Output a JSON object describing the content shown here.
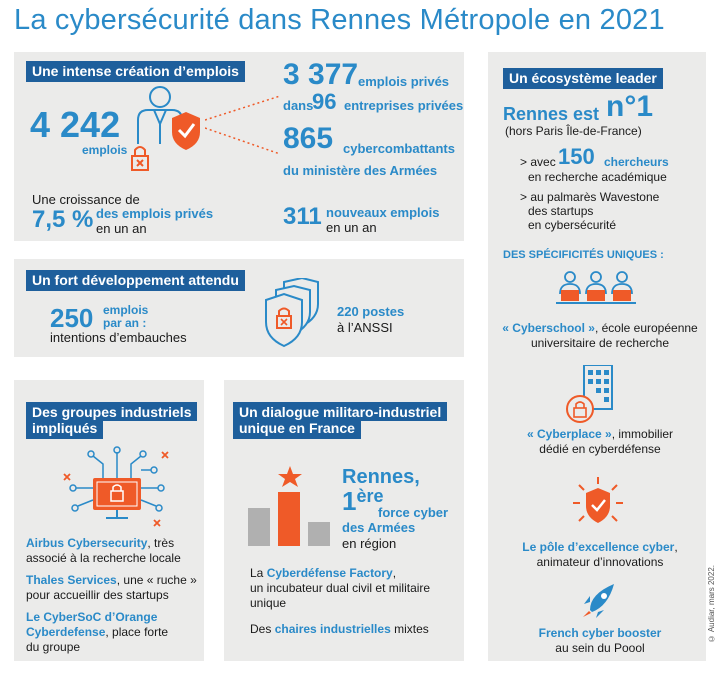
{
  "title": "La cybersécurité dans Rennes Métropole en 2021",
  "colors": {
    "accent_blue": "#2a8ac8",
    "header_navy": "#1e5f9c",
    "orange": "#ef5a28",
    "panel_gray": "#ebebea"
  },
  "emploi": {
    "header": "Une intense création d’emplois",
    "big_number": "4 242",
    "big_label": "emplois",
    "growth_text": "Une croissance de",
    "growth_value": "7,5 %",
    "growth_label": "des emplois privés",
    "growth_suffix": "en un an",
    "private_jobs": "3 377",
    "private_jobs_label": "emplois privés",
    "private_in": "dans",
    "companies": "96",
    "companies_label": "entreprises privées",
    "cyber_fighters": "865",
    "cyber_fighters_label": "cybercombattants",
    "cyber_fighters_sub": "du ministère des Armées",
    "new_jobs": "311",
    "new_jobs_label": "nouveaux emplois",
    "new_jobs_suffix": "en un an"
  },
  "developpement": {
    "header": "Un fort développement attendu",
    "number": "250",
    "number_label_1": "emplois",
    "number_label_2": "par an :",
    "intentions": "intentions d’embauches",
    "postes": "220 postes",
    "anssi": "à l’ANSSI"
  },
  "groupes": {
    "header_1": "Des groupes industriels",
    "header_2": "impliqués",
    "airbus_name": "Airbus Cybersecurity",
    "airbus_text_1": ", très",
    "airbus_text_2": "associé à la recherche locale",
    "thales_name": "Thales Services",
    "thales_text_1": ", une « ruche »",
    "thales_text_2": "pour accueillir des startups",
    "orange_name_1": "Le CyberSoC d’Orange",
    "orange_name_2": "Cyberdefense",
    "orange_text_1": ", place forte",
    "orange_text_2": "du groupe"
  },
  "dialogue": {
    "header_1": "Un dialogue militaro-industriel",
    "header_2": "unique en France",
    "rennes": "Rennes,",
    "rank": "1",
    "rank_sup": "ère",
    "force_1": "force cyber",
    "force_2": "des Armées",
    "region": "en région",
    "factory_pre": "La ",
    "factory_name": "Cyberdéfense Factory",
    "factory_text_1": ",",
    "factory_text_2": "un incubateur dual civil et militaire",
    "factory_text_3": "unique",
    "chaires_pre": "Des ",
    "chaires_name": "chaires industrielles",
    "chaires_post": " mixtes"
  },
  "ecosysteme": {
    "header": "Un écosystème leader",
    "rennes_est": "Rennes est",
    "n1": "n°1",
    "hors_paris": "(hors Paris Île-de-France)",
    "avec": "> avec",
    "chercheurs_num": "150",
    "chercheurs": "chercheurs",
    "recherche": "en recherche académique",
    "palmares_1": "> au palmarès Wavestone",
    "palmares_2": "des startups",
    "palmares_3": "en cybersécurité",
    "specificites": "DES SPÉCIFICITÉS UNIQUES :",
    "cyberschool_name": "« Cyberschool »",
    "cyberschool_text_1": ", école européenne",
    "cyberschool_text_2": "universitaire de recherche",
    "cyberplace_name": "« Cyberplace »",
    "cyberplace_text_1": ", immobilier",
    "cyberplace_text_2": "dédié en cyberdéfense",
    "pole_name": "Le pôle d’excellence cyber",
    "pole_text_1": ",",
    "pole_text_2": "animateur d’innovations",
    "booster_name": "French cyber booster",
    "booster_text": "au sein du Poool"
  },
  "credit": "© Audiar, mars 2022."
}
